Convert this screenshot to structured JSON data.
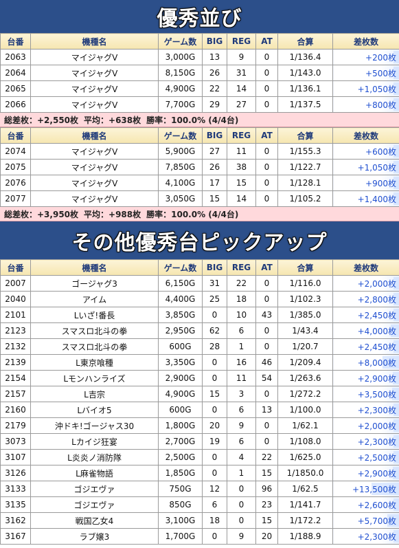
{
  "section1": {
    "title": "優秀並び",
    "groups": [
      {
        "headers": [
          "台番",
          "機種名",
          "ゲーム数",
          "BIG",
          "REG",
          "AT",
          "合算",
          "差枚数"
        ],
        "rows": [
          {
            "no": "2063",
            "name": "マイジャグV",
            "games": "3,000G",
            "big": "13",
            "reg": "9",
            "at": "0",
            "ratio": "1/136.4",
            "diff": "+200枚"
          },
          {
            "no": "2064",
            "name": "マイジャグV",
            "games": "8,150G",
            "big": "26",
            "reg": "31",
            "at": "0",
            "ratio": "1/143.0",
            "diff": "+500枚"
          },
          {
            "no": "2065",
            "name": "マイジャグV",
            "games": "4,900G",
            "big": "22",
            "reg": "14",
            "at": "0",
            "ratio": "1/136.1",
            "diff": "+1,050枚"
          },
          {
            "no": "2066",
            "name": "マイジャグV",
            "games": "7,700G",
            "big": "29",
            "reg": "27",
            "at": "0",
            "ratio": "1/137.5",
            "diff": "+800枚"
          }
        ],
        "summary": {
          "total": "総差枚：+2,550枚",
          "avg": "平均：+638枚",
          "win": "勝率：100.0% (4/4台)"
        }
      },
      {
        "headers": [
          "台番",
          "機種名",
          "ゲーム数",
          "BIG",
          "REG",
          "AT",
          "合算",
          "差枚数"
        ],
        "rows": [
          {
            "no": "2074",
            "name": "マイジャグV",
            "games": "5,900G",
            "big": "27",
            "reg": "11",
            "at": "0",
            "ratio": "1/155.3",
            "diff": "+600枚"
          },
          {
            "no": "2075",
            "name": "マイジャグV",
            "games": "7,850G",
            "big": "26",
            "reg": "38",
            "at": "0",
            "ratio": "1/122.7",
            "diff": "+1,050枚"
          },
          {
            "no": "2076",
            "name": "マイジャグV",
            "games": "4,100G",
            "big": "17",
            "reg": "15",
            "at": "0",
            "ratio": "1/128.1",
            "diff": "+900枚"
          },
          {
            "no": "2077",
            "name": "マイジャグV",
            "games": "3,050G",
            "big": "15",
            "reg": "14",
            "at": "0",
            "ratio": "1/105.2",
            "diff": "+1,400枚"
          }
        ],
        "summary": {
          "total": "総差枚：+3,950枚",
          "avg": "平均：+988枚",
          "win": "勝率：100.0% (4/4台)"
        }
      }
    ]
  },
  "section2": {
    "title": "その他優秀台ピックアップ",
    "headers": [
      "台番",
      "機種名",
      "ゲーム数",
      "BIG",
      "REG",
      "AT",
      "合算",
      "差枚数"
    ],
    "rows": [
      {
        "no": "2007",
        "name": "ゴージャグ3",
        "games": "6,150G",
        "big": "31",
        "reg": "22",
        "at": "0",
        "ratio": "1/116.0",
        "diff": "+2,000枚"
      },
      {
        "no": "2040",
        "name": "アイム",
        "games": "4,400G",
        "big": "25",
        "reg": "18",
        "at": "0",
        "ratio": "1/102.3",
        "diff": "+2,800枚"
      },
      {
        "no": "2101",
        "name": "Lいざ!番長",
        "games": "3,850G",
        "big": "0",
        "reg": "10",
        "at": "43",
        "ratio": "1/385.0",
        "diff": "+2,450枚"
      },
      {
        "no": "2123",
        "name": "スマスロ北斗の拳",
        "games": "2,950G",
        "big": "62",
        "reg": "6",
        "at": "0",
        "ratio": "1/43.4",
        "diff": "+4,000枚"
      },
      {
        "no": "2132",
        "name": "スマスロ北斗の拳",
        "games": "600G",
        "big": "28",
        "reg": "1",
        "at": "0",
        "ratio": "1/20.7",
        "diff": "+2,450枚"
      },
      {
        "no": "2139",
        "name": "L東京喰種",
        "games": "3,350G",
        "big": "0",
        "reg": "16",
        "at": "46",
        "ratio": "1/209.4",
        "diff": "+8,000枚"
      },
      {
        "no": "2154",
        "name": "Lモンハンライズ",
        "games": "2,900G",
        "big": "0",
        "reg": "11",
        "at": "54",
        "ratio": "1/263.6",
        "diff": "+2,900枚"
      },
      {
        "no": "2157",
        "name": "L吉宗",
        "games": "4,900G",
        "big": "15",
        "reg": "3",
        "at": "0",
        "ratio": "1/272.2",
        "diff": "+3,500枚"
      },
      {
        "no": "2160",
        "name": "Lバイオ5",
        "games": "600G",
        "big": "0",
        "reg": "6",
        "at": "13",
        "ratio": "1/100.0",
        "diff": "+2,300枚"
      },
      {
        "no": "2179",
        "name": "沖ドキ!ゴージャス30",
        "games": "1,800G",
        "big": "20",
        "reg": "9",
        "at": "0",
        "ratio": "1/62.1",
        "diff": "+2,000枚"
      },
      {
        "no": "3073",
        "name": "Lカイジ狂宴",
        "games": "2,700G",
        "big": "19",
        "reg": "6",
        "at": "0",
        "ratio": "1/108.0",
        "diff": "+2,300枚"
      },
      {
        "no": "3107",
        "name": "L炎炎ノ消防隊",
        "games": "2,500G",
        "big": "0",
        "reg": "4",
        "at": "22",
        "ratio": "1/625.0",
        "diff": "+2,500枚"
      },
      {
        "no": "3126",
        "name": "L麻雀物語",
        "games": "1,850G",
        "big": "0",
        "reg": "1",
        "at": "15",
        "ratio": "1/1850.0",
        "diff": "+2,900枚"
      },
      {
        "no": "3133",
        "name": "ゴジエヴァ",
        "games": "750G",
        "big": "12",
        "reg": "0",
        "at": "96",
        "ratio": "1/62.5",
        "diff": "+13,500枚"
      },
      {
        "no": "3135",
        "name": "ゴジエヴァ",
        "games": "850G",
        "big": "6",
        "reg": "0",
        "at": "23",
        "ratio": "1/141.7",
        "diff": "+2,600枚"
      },
      {
        "no": "3162",
        "name": "戦国乙女4",
        "games": "3,100G",
        "big": "18",
        "reg": "0",
        "at": "15",
        "ratio": "1/172.2",
        "diff": "+5,700枚"
      },
      {
        "no": "3167",
        "name": "ラブ嬢3",
        "games": "1,700G",
        "big": "0",
        "reg": "9",
        "at": "20",
        "ratio": "1/188.9",
        "diff": "+2,300枚"
      }
    ]
  }
}
